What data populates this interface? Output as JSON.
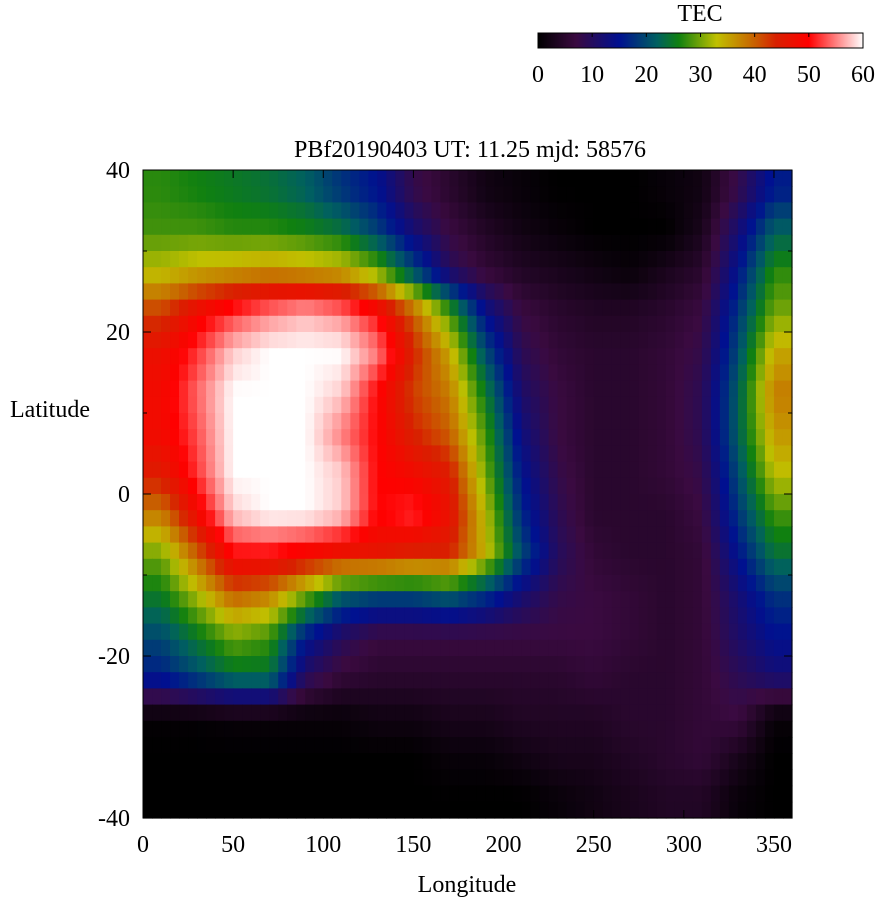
{
  "chart_data": {
    "type": "heatmap",
    "title": "PBf20190403  UT: 11.25  mjd: 58576",
    "xlabel": "Longitude",
    "ylabel": "Latitude",
    "xlim": [
      0,
      360
    ],
    "ylim": [
      -40,
      40
    ],
    "xticks": [
      "0",
      "50",
      "100",
      "150",
      "200",
      "250",
      "300",
      "350"
    ],
    "yticks": [
      "40",
      "20",
      "0",
      "-20",
      "-40"
    ],
    "colorbar": {
      "label": "TEC",
      "range": [
        0,
        60
      ],
      "ticks": [
        "0",
        "10",
        "20",
        "30",
        "40",
        "50",
        "60"
      ],
      "stops": [
        {
          "v": 0,
          "color": "#000000"
        },
        {
          "v": 7,
          "color": "#3a0a40"
        },
        {
          "v": 15,
          "color": "#001090"
        },
        {
          "v": 22,
          "color": "#006060"
        },
        {
          "v": 26,
          "color": "#108010"
        },
        {
          "v": 33,
          "color": "#c0c000"
        },
        {
          "v": 40,
          "color": "#c86000"
        },
        {
          "v": 44,
          "color": "#d82000"
        },
        {
          "v": 50,
          "color": "#ff0000"
        },
        {
          "v": 60,
          "color": "#ffffff"
        }
      ]
    },
    "lon_centers": [
      10,
      30,
      50,
      70,
      90,
      110,
      130,
      150,
      170,
      190,
      210,
      230,
      250,
      270,
      290,
      310,
      330,
      350
    ],
    "lat_centers": [
      37.5,
      32.5,
      27.5,
      22.5,
      17.5,
      12.5,
      7.5,
      2.5,
      -2.5,
      -7.5,
      -12.5,
      -17.5,
      -22.5,
      -27.5,
      -32.5,
      -37.5
    ],
    "values": [
      [
        27,
        26,
        25,
        24,
        22,
        18,
        15,
        8,
        5,
        2,
        1,
        0,
        0,
        0,
        1,
        2,
        8,
        16
      ],
      [
        28,
        28,
        27,
        27,
        26,
        24,
        19,
        12,
        7,
        4,
        2,
        1,
        0,
        0,
        0,
        3,
        12,
        22
      ],
      [
        33,
        35,
        36,
        37,
        36,
        35,
        30,
        20,
        10,
        6,
        4,
        3,
        2,
        1,
        3,
        5,
        15,
        27
      ],
      [
        42,
        48,
        52,
        55,
        57,
        55,
        50,
        40,
        28,
        14,
        7,
        5,
        4,
        4,
        5,
        7,
        18,
        30
      ],
      [
        47,
        52,
        58,
        60,
        60,
        60,
        55,
        44,
        35,
        20,
        9,
        6,
        5,
        5,
        6,
        8,
        20,
        35
      ],
      [
        48,
        54,
        60,
        60,
        60,
        58,
        50,
        42,
        38,
        25,
        11,
        7,
        5,
        5,
        6,
        9,
        22,
        38
      ],
      [
        48,
        53,
        60,
        60,
        60,
        55,
        50,
        44,
        40,
        28,
        13,
        7,
        5,
        5,
        6,
        9,
        22,
        36
      ],
      [
        45,
        52,
        60,
        60,
        60,
        58,
        50,
        48,
        45,
        30,
        15,
        8,
        5,
        5,
        6,
        8,
        20,
        33
      ],
      [
        38,
        48,
        58,
        60,
        60,
        58,
        50,
        52,
        47,
        33,
        17,
        9,
        5,
        5,
        5,
        7,
        18,
        28
      ],
      [
        30,
        40,
        50,
        50,
        48,
        46,
        46,
        44,
        44,
        34,
        20,
        10,
        6,
        5,
        5,
        6,
        15,
        24
      ],
      [
        25,
        32,
        40,
        38,
        30,
        22,
        20,
        20,
        22,
        18,
        12,
        8,
        7,
        6,
        5,
        6,
        12,
        18
      ],
      [
        20,
        25,
        30,
        28,
        16,
        10,
        7,
        7,
        7,
        7,
        7,
        7,
        7,
        6,
        5,
        6,
        11,
        15
      ],
      [
        16,
        20,
        24,
        24,
        10,
        6,
        5,
        5,
        5,
        5,
        5,
        5,
        6,
        5,
        5,
        6,
        9,
        12
      ],
      [
        0.5,
        0.5,
        1,
        1,
        1,
        1,
        2,
        2,
        3,
        3,
        4,
        4,
        4,
        5,
        5,
        6,
        7,
        1
      ],
      [
        0,
        0,
        0,
        0,
        0,
        0,
        0,
        0,
        1,
        1,
        2,
        3,
        3,
        4,
        5,
        6,
        3,
        0
      ],
      [
        0,
        0,
        0,
        0,
        0,
        0,
        0,
        0,
        0,
        0,
        0,
        1,
        2,
        3,
        4,
        4,
        1,
        0
      ]
    ]
  }
}
